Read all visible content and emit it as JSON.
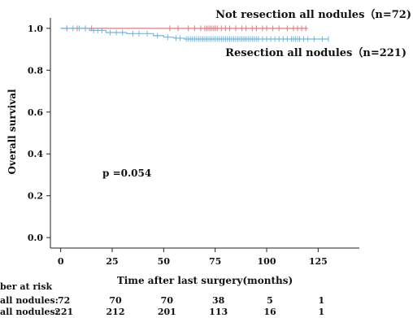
{
  "chart_data": {
    "type": "line",
    "title": "",
    "xlabel": "Time after last surgery(months)",
    "ylabel": "Overall survival",
    "xlim": [
      -5,
      145
    ],
    "ylim": [
      -0.05,
      1.05
    ],
    "x_ticks": [
      0,
      25,
      50,
      75,
      100,
      125
    ],
    "y_ticks": [
      "0.0",
      "0.2",
      "0.4",
      "0.6",
      "0.8",
      "1.0"
    ],
    "grid": false,
    "annotation": "p =0.054",
    "series": [
      {
        "name": "Not resection all nodules",
        "label": "Not resection all nodules（n=72)",
        "color": "#e8767a",
        "steps": [
          [
            0,
            1.0
          ],
          [
            120,
            1.0
          ]
        ],
        "censored_x": [
          3,
          8,
          12,
          15,
          53,
          57,
          62,
          65,
          68,
          70,
          71,
          72,
          73,
          74,
          75,
          76,
          78,
          80,
          82,
          85,
          88,
          90,
          93,
          95,
          98,
          100,
          103,
          106,
          110,
          113,
          115,
          117,
          119
        ]
      },
      {
        "name": "Resection all nodules",
        "label": "Resection all nodules（n=221)",
        "color": "#6fb7e0",
        "steps": [
          [
            0,
            1.0
          ],
          [
            14,
            1.0
          ],
          [
            14,
            0.99
          ],
          [
            22,
            0.99
          ],
          [
            22,
            0.98
          ],
          [
            32,
            0.98
          ],
          [
            32,
            0.975
          ],
          [
            45,
            0.975
          ],
          [
            45,
            0.965
          ],
          [
            50,
            0.965
          ],
          [
            50,
            0.958
          ],
          [
            55,
            0.958
          ],
          [
            55,
            0.953
          ],
          [
            60,
            0.953
          ],
          [
            60,
            0.949
          ],
          [
            130,
            0.949
          ]
        ],
        "censored_x": [
          3,
          6,
          9,
          12,
          16,
          18,
          20,
          24,
          27,
          30,
          35,
          38,
          42,
          47,
          52,
          56,
          58,
          61,
          62,
          63,
          64,
          65,
          66,
          67,
          68,
          69,
          70,
          71,
          72,
          73,
          74,
          75,
          76,
          77,
          78,
          79,
          80,
          81,
          82,
          83,
          84,
          85,
          86,
          87,
          88,
          89,
          90,
          91,
          92,
          93,
          94,
          95,
          96,
          98,
          100,
          102,
          104,
          106,
          108,
          110,
          112,
          113,
          114,
          115,
          116,
          118,
          120,
          123,
          127,
          130
        ]
      }
    ]
  },
  "risk_table": {
    "header": "ber at risk",
    "x": [
      0,
      25,
      50,
      75,
      100,
      125
    ],
    "rows": [
      {
        "label": "all nodules:",
        "values": [
          "72",
          "70",
          "70",
          "38",
          "5",
          "1"
        ]
      },
      {
        "label": "all nodules:",
        "values": [
          "221",
          "212",
          "201",
          "113",
          "16",
          "1"
        ]
      }
    ]
  }
}
